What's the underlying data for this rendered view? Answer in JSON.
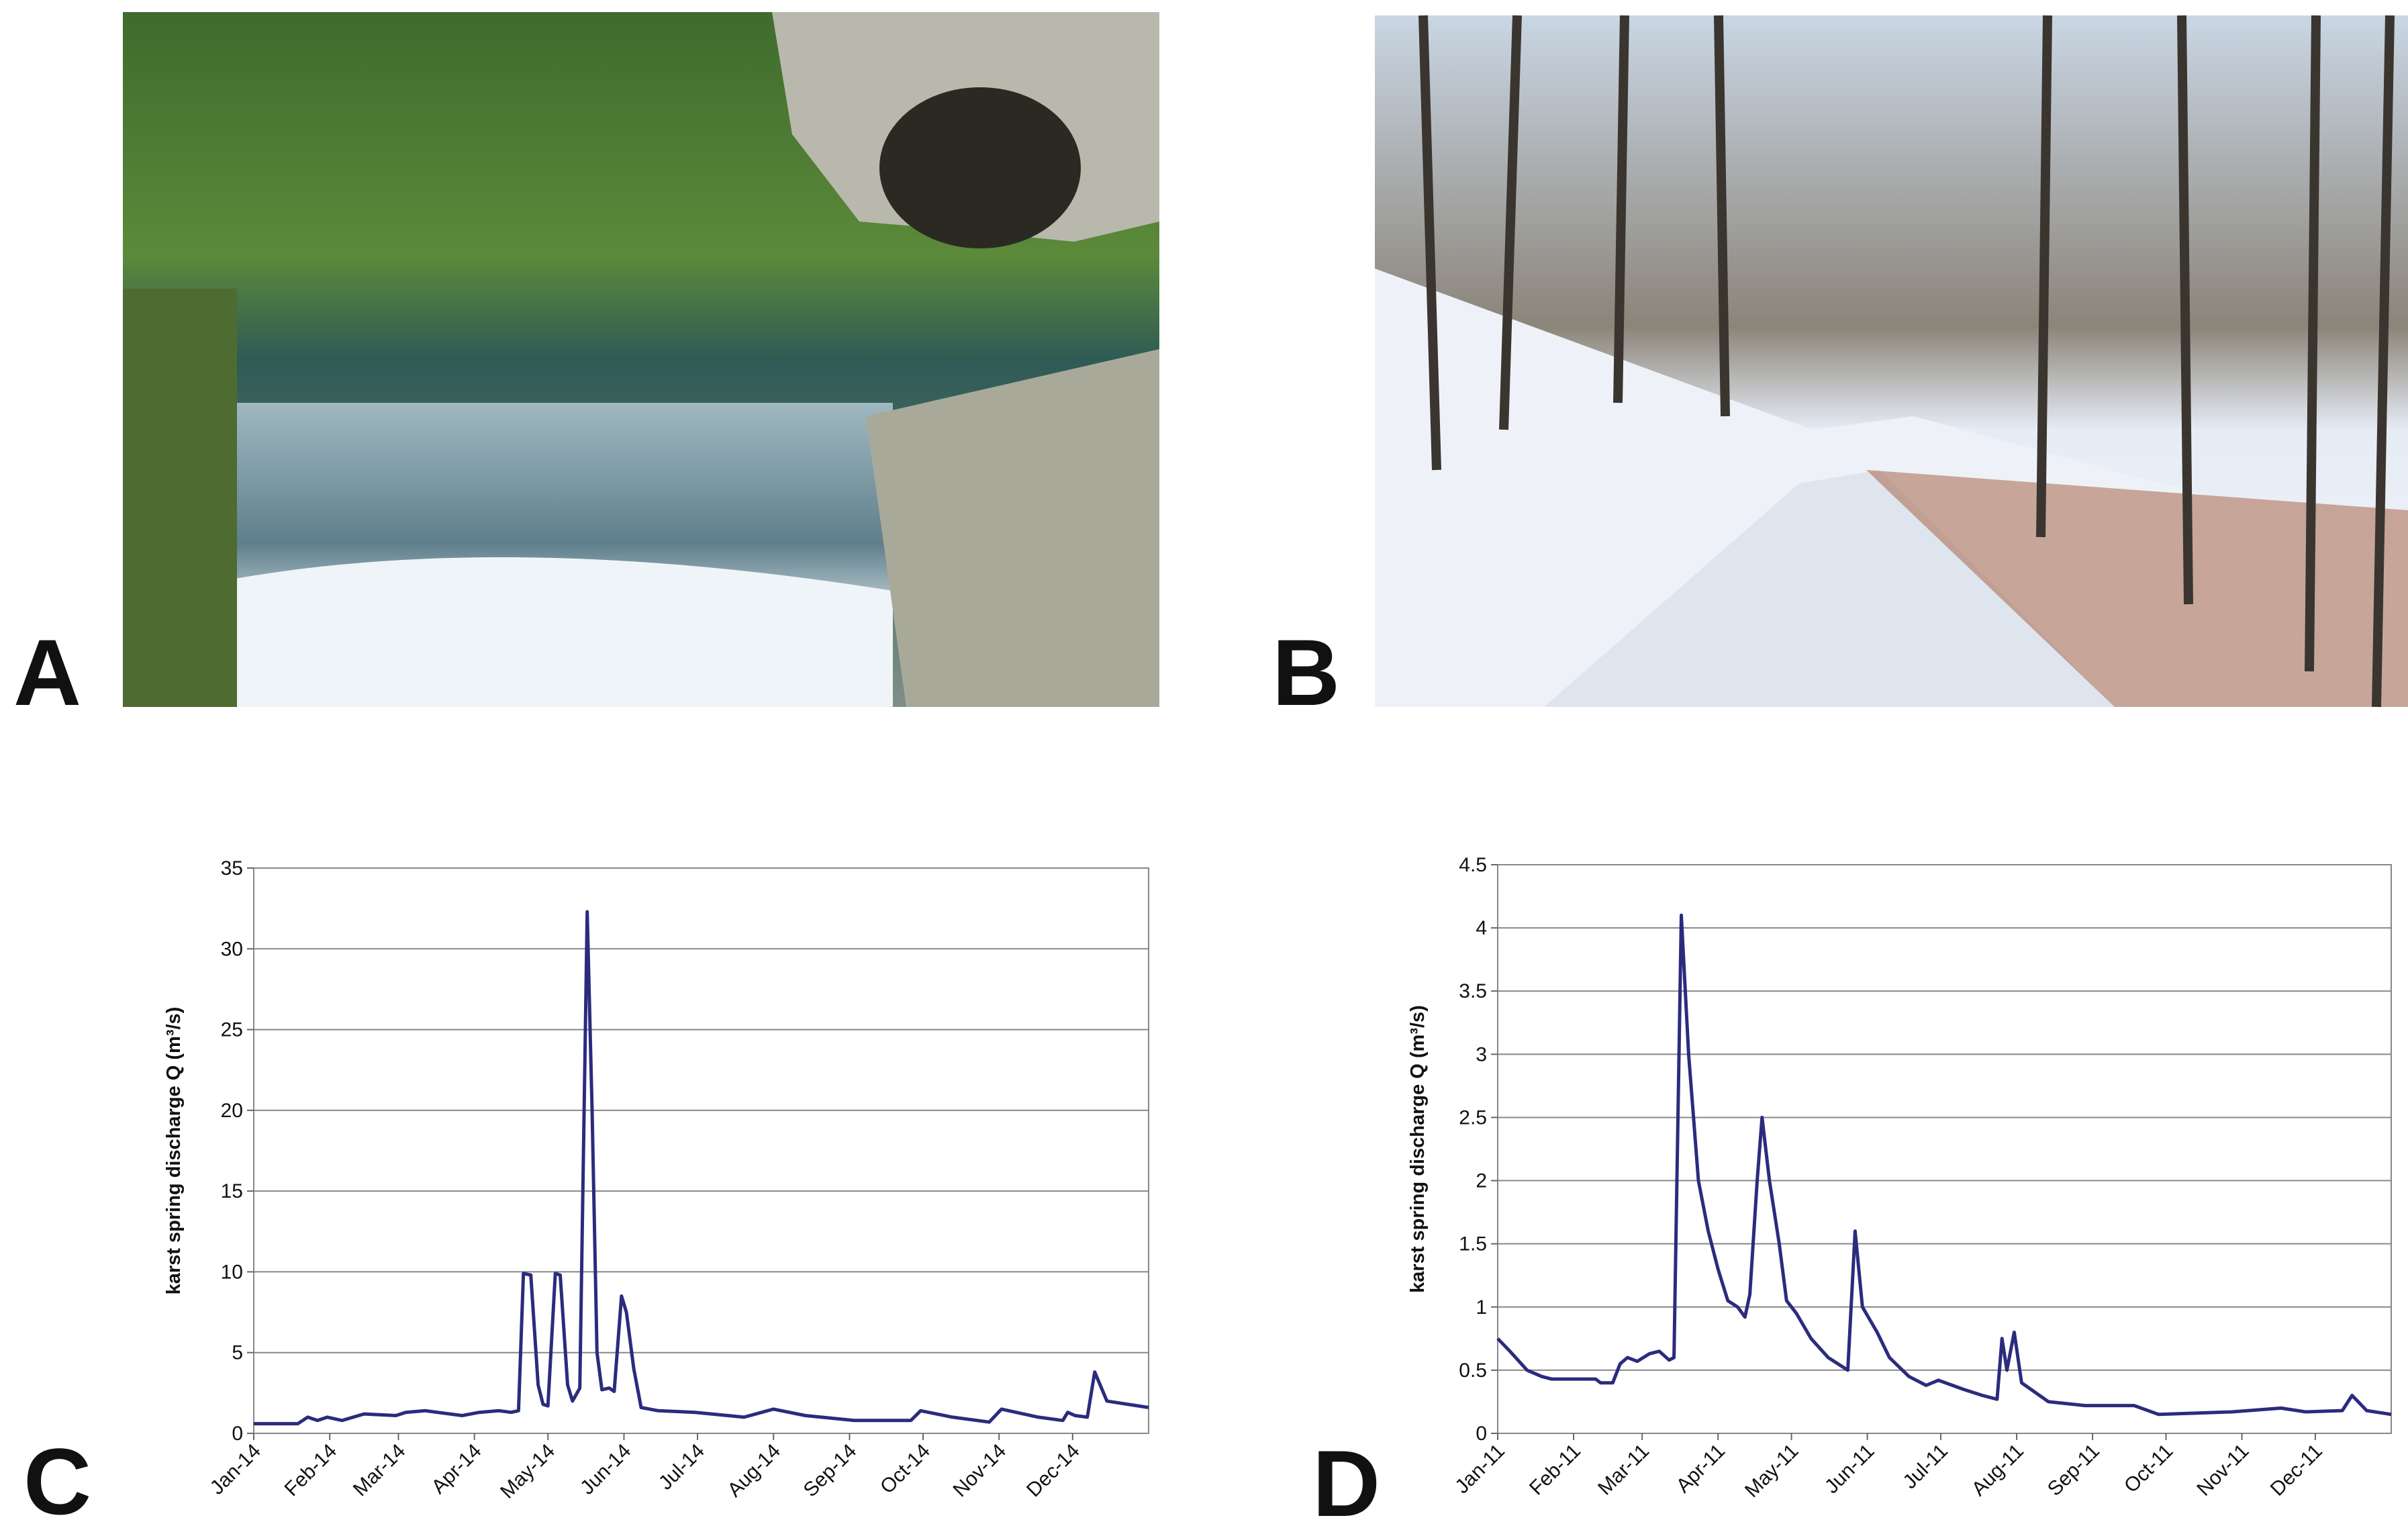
{
  "panel_labels": [
    "A",
    "B",
    "C",
    "D"
  ],
  "chart_data": [
    {
      "type": "line",
      "y_label": "karst spring discharge Q (m³/s)",
      "color": "#2b2b7e",
      "grid": true,
      "xlim": [
        0,
        365
      ],
      "xticks": [
        {
          "value": 0,
          "label": "Jan-14"
        },
        {
          "value": 31,
          "label": "Feb-14"
        },
        {
          "value": 59,
          "label": "Mar-14"
        },
        {
          "value": 90,
          "label": "Apr-14"
        },
        {
          "value": 120,
          "label": "May-14"
        },
        {
          "value": 151,
          "label": "Jun-14"
        },
        {
          "value": 181,
          "label": "Jul-14"
        },
        {
          "value": 212,
          "label": "Aug-14"
        },
        {
          "value": 243,
          "label": "Sep-14"
        },
        {
          "value": 273,
          "label": "Oct-14"
        },
        {
          "value": 304,
          "label": "Nov-14"
        },
        {
          "value": 334,
          "label": "Dec-14"
        }
      ],
      "ylim": [
        0,
        35
      ],
      "yticks": [
        0,
        5,
        10,
        15,
        20,
        25,
        30,
        35
      ],
      "x": [
        0,
        18,
        22,
        26,
        30,
        36,
        45,
        58,
        62,
        70,
        85,
        92,
        100,
        105,
        108,
        110,
        113,
        116,
        118,
        120,
        123,
        125,
        128,
        130,
        133,
        136,
        138,
        140,
        142,
        145,
        147,
        150,
        152,
        155,
        158,
        165,
        180,
        200,
        212,
        225,
        245,
        268,
        272,
        285,
        300,
        305,
        320,
        330,
        332,
        335,
        340,
        343,
        348,
        365
      ],
      "values": [
        0.6,
        0.6,
        1.0,
        0.8,
        1.0,
        0.8,
        1.2,
        1.1,
        1.3,
        1.4,
        1.1,
        1.3,
        1.4,
        1.3,
        1.4,
        9.9,
        9.8,
        3,
        1.8,
        1.7,
        9.9,
        9.8,
        3,
        2.0,
        2.8,
        32.3,
        20,
        5,
        2.7,
        2.8,
        2.6,
        8.5,
        7.5,
        4,
        1.6,
        1.4,
        1.3,
        1.0,
        1.5,
        1.1,
        0.8,
        0.8,
        1.4,
        1.0,
        0.7,
        1.5,
        1.0,
        0.8,
        1.3,
        1.1,
        1.0,
        3.8,
        2.0,
        1.6
      ]
    },
    {
      "type": "line",
      "y_label": "karst spring discharge Q (m³/s)",
      "color": "#2b2b7e",
      "grid": true,
      "xlim": [
        0,
        365
      ],
      "xticks": [
        {
          "value": 0,
          "label": "Jan-11"
        },
        {
          "value": 31,
          "label": "Feb-11"
        },
        {
          "value": 59,
          "label": "Mar-11"
        },
        {
          "value": 90,
          "label": "Apr-11"
        },
        {
          "value": 120,
          "label": "May-11"
        },
        {
          "value": 151,
          "label": "Jun-11"
        },
        {
          "value": 181,
          "label": "Jul-11"
        },
        {
          "value": 212,
          "label": "Aug-11"
        },
        {
          "value": 243,
          "label": "Sep-11"
        },
        {
          "value": 273,
          "label": "Oct-11"
        },
        {
          "value": 304,
          "label": "Nov-11"
        },
        {
          "value": 334,
          "label": "Dec-11"
        }
      ],
      "ylim": [
        0,
        4.5
      ],
      "yticks": [
        0,
        0.5,
        1,
        1.5,
        2,
        2.5,
        3,
        3.5,
        4,
        4.5
      ],
      "x": [
        0,
        5,
        12,
        18,
        22,
        40,
        42,
        47,
        50,
        53,
        57,
        62,
        66,
        70,
        72,
        75,
        78,
        82,
        86,
        90,
        94,
        98,
        101,
        103,
        106,
        108,
        111,
        115,
        118,
        122,
        128,
        135,
        143,
        146,
        149,
        155,
        160,
        168,
        175,
        180,
        190,
        198,
        204,
        206,
        208,
        211,
        214,
        225,
        240,
        260,
        270,
        300,
        320,
        330,
        345,
        349,
        355,
        365
      ],
      "values": [
        0.75,
        0.65,
        0.5,
        0.45,
        0.43,
        0.43,
        0.4,
        0.4,
        0.55,
        0.6,
        0.57,
        0.63,
        0.65,
        0.58,
        0.6,
        4.1,
        3.0,
        2.0,
        1.6,
        1.3,
        1.05,
        1.0,
        0.92,
        1.1,
        2.0,
        2.5,
        2.0,
        1.5,
        1.05,
        0.95,
        0.75,
        0.6,
        0.5,
        1.6,
        1.0,
        0.8,
        0.6,
        0.45,
        0.38,
        0.42,
        0.35,
        0.3,
        0.27,
        0.75,
        0.5,
        0.8,
        0.4,
        0.25,
        0.22,
        0.22,
        0.15,
        0.17,
        0.2,
        0.17,
        0.18,
        0.3,
        0.18,
        0.15
      ]
    }
  ]
}
